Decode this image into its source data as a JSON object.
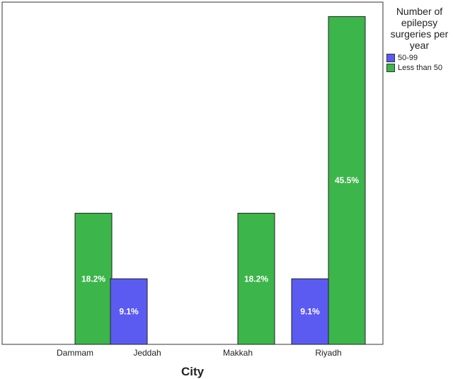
{
  "chart_data": {
    "type": "bar",
    "title": "",
    "xlabel": "City",
    "ylabel": "",
    "categories": [
      "Dammam",
      "Jeddah",
      "Makkah",
      "Riyadh"
    ],
    "ylim": [
      0,
      50
    ],
    "grid": false,
    "legend_position": "top-right",
    "legend_title": "Number of epilepsy surgeries per year",
    "series": [
      {
        "name": "50-99",
        "color": "#5b5bf2",
        "values": [
          null,
          9.1,
          null,
          9.1
        ],
        "labels": [
          "",
          "9.1%",
          "",
          "9.1%"
        ]
      },
      {
        "name": "Less than 50",
        "color": "#3cb54a",
        "values": [
          18.2,
          null,
          18.2,
          45.5
        ],
        "labels": [
          "18.2%",
          "",
          "18.2%",
          "45.5%"
        ]
      }
    ]
  }
}
